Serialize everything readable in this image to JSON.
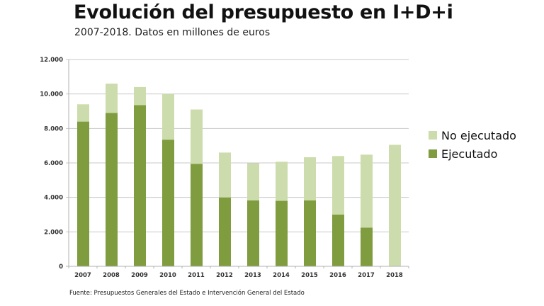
{
  "chart_data": {
    "type": "bar",
    "stacked": true,
    "title": "Evolución del presupuesto en I+D+i",
    "subtitle": "2007-2018. Datos en millones de euros",
    "xlabel": "",
    "ylabel": "",
    "categories": [
      "2007",
      "2008",
      "2009",
      "2010",
      "2011",
      "2012",
      "2013",
      "2014",
      "2015",
      "2016",
      "2017",
      "2018"
    ],
    "series": [
      {
        "name": "Ejecutado",
        "color": "#7f9c3f",
        "values": [
          8400,
          8900,
          9350,
          7350,
          5950,
          4000,
          3830,
          3800,
          3830,
          3000,
          2250,
          0
        ]
      },
      {
        "name": "No ejecutado",
        "color": "#cddcac",
        "values": [
          1000,
          1700,
          1050,
          2650,
          3150,
          2600,
          2150,
          2270,
          2500,
          3400,
          4230,
          7050
        ]
      }
    ],
    "ylim": [
      0,
      12000
    ],
    "yticks": [
      0,
      2000,
      4000,
      6000,
      8000,
      10000,
      12000
    ],
    "ytick_labels": [
      "0",
      "2.000",
      "4.000",
      "6.000",
      "8.000",
      "10.000",
      "12.000"
    ],
    "grid": true,
    "legend": {
      "placement": "right",
      "entries": [
        {
          "label": "No ejecutado",
          "color": "#cddcac"
        },
        {
          "label": "Ejecutado",
          "color": "#7f9c3f"
        }
      ]
    },
    "source": "Fuente: Presupuestos Generales del Estado e Intervención General del Estado"
  }
}
